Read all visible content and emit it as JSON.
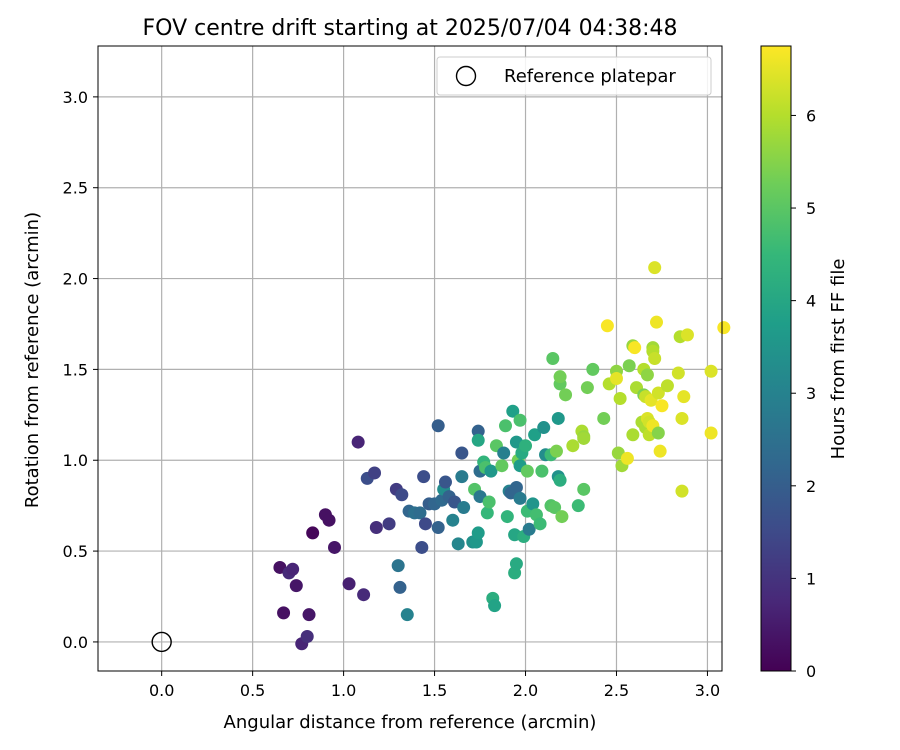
{
  "chart_data": {
    "type": "scatter",
    "title": "FOV centre drift starting at 2025/07/04 04:38:48",
    "xlabel": "Angular distance from reference (arcmin)",
    "ylabel": "Rotation from reference (arcmin)",
    "xlim": [
      -0.35,
      3.08
    ],
    "ylim": [
      -0.16,
      3.28
    ],
    "xticks": [
      "0.0",
      "0.5",
      "1.0",
      "1.5",
      "2.0",
      "2.5",
      "3.0"
    ],
    "yticks": [
      "0.0",
      "0.5",
      "1.0",
      "1.5",
      "2.0",
      "2.5",
      "3.0"
    ],
    "grid": true,
    "legend": {
      "position": "top-right",
      "label": "Reference platepar"
    },
    "reference_point": {
      "x": 0.0,
      "y": 0.0
    },
    "colorbar": {
      "label": "Hours from first FF file",
      "min": 0,
      "max": 6.75,
      "ticks": [
        "0",
        "1",
        "2",
        "3",
        "4",
        "5",
        "6"
      ],
      "colormap": "viridis"
    },
    "points": [
      {
        "x": 0.65,
        "y": 0.41,
        "h": 0.3
      },
      {
        "x": 0.67,
        "y": 0.16,
        "h": 0.3
      },
      {
        "x": 0.7,
        "y": 0.38,
        "h": 0.8
      },
      {
        "x": 0.72,
        "y": 0.4,
        "h": 0.7
      },
      {
        "x": 0.74,
        "y": 0.31,
        "h": 0.4
      },
      {
        "x": 0.77,
        "y": -0.01,
        "h": 0.7
      },
      {
        "x": 0.8,
        "y": 0.03,
        "h": 0.9
      },
      {
        "x": 0.81,
        "y": 0.15,
        "h": 0.4
      },
      {
        "x": 0.83,
        "y": 0.6,
        "h": 0.1
      },
      {
        "x": 0.9,
        "y": 0.7,
        "h": 0.3
      },
      {
        "x": 0.92,
        "y": 0.67,
        "h": 0.3
      },
      {
        "x": 0.95,
        "y": 0.52,
        "h": 0.4
      },
      {
        "x": 1.03,
        "y": 0.32,
        "h": 0.6
      },
      {
        "x": 1.08,
        "y": 1.1,
        "h": 0.7
      },
      {
        "x": 1.11,
        "y": 0.26,
        "h": 0.8
      },
      {
        "x": 1.13,
        "y": 0.9,
        "h": 1.6
      },
      {
        "x": 1.17,
        "y": 0.93,
        "h": 1.3
      },
      {
        "x": 1.18,
        "y": 0.63,
        "h": 0.9
      },
      {
        "x": 1.25,
        "y": 0.65,
        "h": 1.2
      },
      {
        "x": 1.29,
        "y": 0.84,
        "h": 1.2
      },
      {
        "x": 1.3,
        "y": 0.42,
        "h": 2.6
      },
      {
        "x": 1.31,
        "y": 0.3,
        "h": 2.1
      },
      {
        "x": 1.32,
        "y": 0.81,
        "h": 1.5
      },
      {
        "x": 1.35,
        "y": 0.15,
        "h": 3.0
      },
      {
        "x": 1.36,
        "y": 0.72,
        "h": 2.2
      },
      {
        "x": 1.39,
        "y": 0.71,
        "h": 2.5
      },
      {
        "x": 1.42,
        "y": 0.71,
        "h": 2.4
      },
      {
        "x": 1.43,
        "y": 0.52,
        "h": 1.6
      },
      {
        "x": 1.44,
        "y": 0.91,
        "h": 1.6
      },
      {
        "x": 1.45,
        "y": 0.65,
        "h": 1.5
      },
      {
        "x": 1.47,
        "y": 0.76,
        "h": 2.0
      },
      {
        "x": 1.5,
        "y": 0.76,
        "h": 2.2
      },
      {
        "x": 1.52,
        "y": 0.63,
        "h": 2.1
      },
      {
        "x": 1.52,
        "y": 1.19,
        "h": 2.0
      },
      {
        "x": 1.54,
        "y": 0.78,
        "h": 2.3
      },
      {
        "x": 1.55,
        "y": 0.84,
        "h": 3.3
      },
      {
        "x": 1.56,
        "y": 0.88,
        "h": 1.8
      },
      {
        "x": 1.58,
        "y": 0.8,
        "h": 2.1
      },
      {
        "x": 1.6,
        "y": 0.67,
        "h": 3.0
      },
      {
        "x": 1.61,
        "y": 0.77,
        "h": 1.8
      },
      {
        "x": 1.63,
        "y": 0.54,
        "h": 3.1
      },
      {
        "x": 1.65,
        "y": 1.04,
        "h": 1.8
      },
      {
        "x": 1.65,
        "y": 0.91,
        "h": 2.8
      },
      {
        "x": 1.66,
        "y": 0.74,
        "h": 2.8
      },
      {
        "x": 1.71,
        "y": 0.55,
        "h": 3.4
      },
      {
        "x": 1.72,
        "y": 0.84,
        "h": 4.9
      },
      {
        "x": 1.73,
        "y": 0.55,
        "h": 3.6
      },
      {
        "x": 1.74,
        "y": 0.6,
        "h": 3.7
      },
      {
        "x": 1.74,
        "y": 1.16,
        "h": 2.1
      },
      {
        "x": 1.74,
        "y": 1.11,
        "h": 4.0
      },
      {
        "x": 1.75,
        "y": 0.94,
        "h": 2.4
      },
      {
        "x": 1.75,
        "y": 0.8,
        "h": 2.7
      },
      {
        "x": 1.77,
        "y": 0.99,
        "h": 4.4
      },
      {
        "x": 1.78,
        "y": 0.96,
        "h": 4.8
      },
      {
        "x": 1.79,
        "y": 0.71,
        "h": 4.5
      },
      {
        "x": 1.8,
        "y": 0.77,
        "h": 4.8
      },
      {
        "x": 1.81,
        "y": 0.94,
        "h": 3.6
      },
      {
        "x": 1.82,
        "y": 0.24,
        "h": 4.2
      },
      {
        "x": 1.83,
        "y": 0.2,
        "h": 3.9
      },
      {
        "x": 1.84,
        "y": 1.08,
        "h": 5.0
      },
      {
        "x": 1.87,
        "y": 0.97,
        "h": 5.1
      },
      {
        "x": 1.88,
        "y": 1.04,
        "h": 2.9
      },
      {
        "x": 1.89,
        "y": 1.19,
        "h": 4.8
      },
      {
        "x": 1.9,
        "y": 0.69,
        "h": 4.4
      },
      {
        "x": 1.91,
        "y": 0.83,
        "h": 3.0
      },
      {
        "x": 1.92,
        "y": 0.82,
        "h": 2.2
      },
      {
        "x": 1.93,
        "y": 1.27,
        "h": 3.8
      },
      {
        "x": 1.94,
        "y": 0.59,
        "h": 4.0
      },
      {
        "x": 1.94,
        "y": 0.38,
        "h": 4.2
      },
      {
        "x": 1.95,
        "y": 1.1,
        "h": 3.6
      },
      {
        "x": 1.95,
        "y": 0.43,
        "h": 4.1
      },
      {
        "x": 1.95,
        "y": 0.85,
        "h": 2.2
      },
      {
        "x": 1.96,
        "y": 1.0,
        "h": 5.3
      },
      {
        "x": 1.97,
        "y": 1.22,
        "h": 4.8
      },
      {
        "x": 1.97,
        "y": 0.97,
        "h": 3.7
      },
      {
        "x": 1.97,
        "y": 0.79,
        "h": 2.8
      },
      {
        "x": 1.98,
        "y": 1.04,
        "h": 4.1
      },
      {
        "x": 1.99,
        "y": 0.58,
        "h": 4.2
      },
      {
        "x": 2.0,
        "y": 1.08,
        "h": 4.3
      },
      {
        "x": 2.01,
        "y": 0.94,
        "h": 5.1
      },
      {
        "x": 2.01,
        "y": 0.72,
        "h": 4.6
      },
      {
        "x": 2.02,
        "y": 0.62,
        "h": 2.8
      },
      {
        "x": 2.04,
        "y": 0.76,
        "h": 3.5
      },
      {
        "x": 2.05,
        "y": 1.14,
        "h": 3.8
      },
      {
        "x": 2.06,
        "y": 0.7,
        "h": 4.7
      },
      {
        "x": 2.08,
        "y": 0.65,
        "h": 4.6
      },
      {
        "x": 2.09,
        "y": 0.94,
        "h": 4.8
      },
      {
        "x": 2.1,
        "y": 1.18,
        "h": 3.4
      },
      {
        "x": 2.11,
        "y": 1.03,
        "h": 3.3
      },
      {
        "x": 2.14,
        "y": 1.03,
        "h": 4.6
      },
      {
        "x": 2.14,
        "y": 0.75,
        "h": 4.9
      },
      {
        "x": 2.15,
        "y": 1.56,
        "h": 5.0
      },
      {
        "x": 2.16,
        "y": 0.74,
        "h": 5.0
      },
      {
        "x": 2.17,
        "y": 1.05,
        "h": 5.4
      },
      {
        "x": 2.18,
        "y": 1.23,
        "h": 3.6
      },
      {
        "x": 2.18,
        "y": 0.91,
        "h": 3.4
      },
      {
        "x": 2.19,
        "y": 1.42,
        "h": 5.1
      },
      {
        "x": 2.19,
        "y": 0.89,
        "h": 4.2
      },
      {
        "x": 2.19,
        "y": 1.46,
        "h": 5.3
      },
      {
        "x": 2.2,
        "y": 0.69,
        "h": 5.3
      },
      {
        "x": 2.22,
        "y": 1.36,
        "h": 5.3
      },
      {
        "x": 2.26,
        "y": 1.08,
        "h": 5.9
      },
      {
        "x": 2.29,
        "y": 0.75,
        "h": 4.6
      },
      {
        "x": 2.31,
        "y": 1.16,
        "h": 5.9
      },
      {
        "x": 2.32,
        "y": 1.13,
        "h": 5.7
      },
      {
        "x": 2.32,
        "y": 0.84,
        "h": 5.0
      },
      {
        "x": 2.32,
        "y": 1.12,
        "h": 5.8
      },
      {
        "x": 2.34,
        "y": 1.4,
        "h": 5.3
      },
      {
        "x": 2.37,
        "y": 1.5,
        "h": 5.1
      },
      {
        "x": 2.43,
        "y": 1.23,
        "h": 5.3
      },
      {
        "x": 2.45,
        "y": 1.74,
        "h": 6.7
      },
      {
        "x": 2.46,
        "y": 1.42,
        "h": 6.0
      },
      {
        "x": 2.5,
        "y": 1.49,
        "h": 5.6
      },
      {
        "x": 2.5,
        "y": 1.45,
        "h": 6.5
      },
      {
        "x": 2.51,
        "y": 1.04,
        "h": 5.7
      },
      {
        "x": 2.52,
        "y": 1.34,
        "h": 6.0
      },
      {
        "x": 2.53,
        "y": 0.97,
        "h": 5.8
      },
      {
        "x": 2.56,
        "y": 1.01,
        "h": 6.6
      },
      {
        "x": 2.57,
        "y": 1.52,
        "h": 5.4
      },
      {
        "x": 2.59,
        "y": 1.63,
        "h": 5.7
      },
      {
        "x": 2.59,
        "y": 1.14,
        "h": 5.9
      },
      {
        "x": 2.6,
        "y": 1.62,
        "h": 6.7
      },
      {
        "x": 2.61,
        "y": 1.4,
        "h": 5.9
      },
      {
        "x": 2.64,
        "y": 1.21,
        "h": 5.9
      },
      {
        "x": 2.65,
        "y": 1.36,
        "h": 5.4
      },
      {
        "x": 2.65,
        "y": 1.5,
        "h": 6.0
      },
      {
        "x": 2.66,
        "y": 1.35,
        "h": 6.2
      },
      {
        "x": 2.66,
        "y": 1.18,
        "h": 5.9
      },
      {
        "x": 2.67,
        "y": 1.23,
        "h": 6.4
      },
      {
        "x": 2.67,
        "y": 1.47,
        "h": 5.6
      },
      {
        "x": 2.68,
        "y": 1.21,
        "h": 6.3
      },
      {
        "x": 2.68,
        "y": 1.14,
        "h": 6.1
      },
      {
        "x": 2.69,
        "y": 1.33,
        "h": 6.5
      },
      {
        "x": 2.7,
        "y": 1.19,
        "h": 6.6
      },
      {
        "x": 2.7,
        "y": 1.62,
        "h": 5.8
      },
      {
        "x": 2.7,
        "y": 1.6,
        "h": 6.0
      },
      {
        "x": 2.71,
        "y": 1.56,
        "h": 6.2
      },
      {
        "x": 2.71,
        "y": 2.06,
        "h": 6.4
      },
      {
        "x": 2.72,
        "y": 1.76,
        "h": 6.6
      },
      {
        "x": 2.73,
        "y": 1.37,
        "h": 6.3
      },
      {
        "x": 2.73,
        "y": 1.15,
        "h": 5.5
      },
      {
        "x": 2.74,
        "y": 1.05,
        "h": 6.6
      },
      {
        "x": 2.75,
        "y": 1.3,
        "h": 6.7
      },
      {
        "x": 2.78,
        "y": 1.41,
        "h": 6.1
      },
      {
        "x": 2.84,
        "y": 1.48,
        "h": 6.3
      },
      {
        "x": 2.85,
        "y": 1.68,
        "h": 6.0
      },
      {
        "x": 2.86,
        "y": 1.23,
        "h": 6.4
      },
      {
        "x": 2.86,
        "y": 0.83,
        "h": 6.3
      },
      {
        "x": 2.87,
        "y": 1.35,
        "h": 6.5
      },
      {
        "x": 2.89,
        "y": 1.69,
        "h": 6.4
      },
      {
        "x": 3.02,
        "y": 1.15,
        "h": 6.6
      },
      {
        "x": 3.02,
        "y": 1.49,
        "h": 6.4
      },
      {
        "x": 3.09,
        "y": 1.73,
        "h": 6.7
      }
    ]
  }
}
